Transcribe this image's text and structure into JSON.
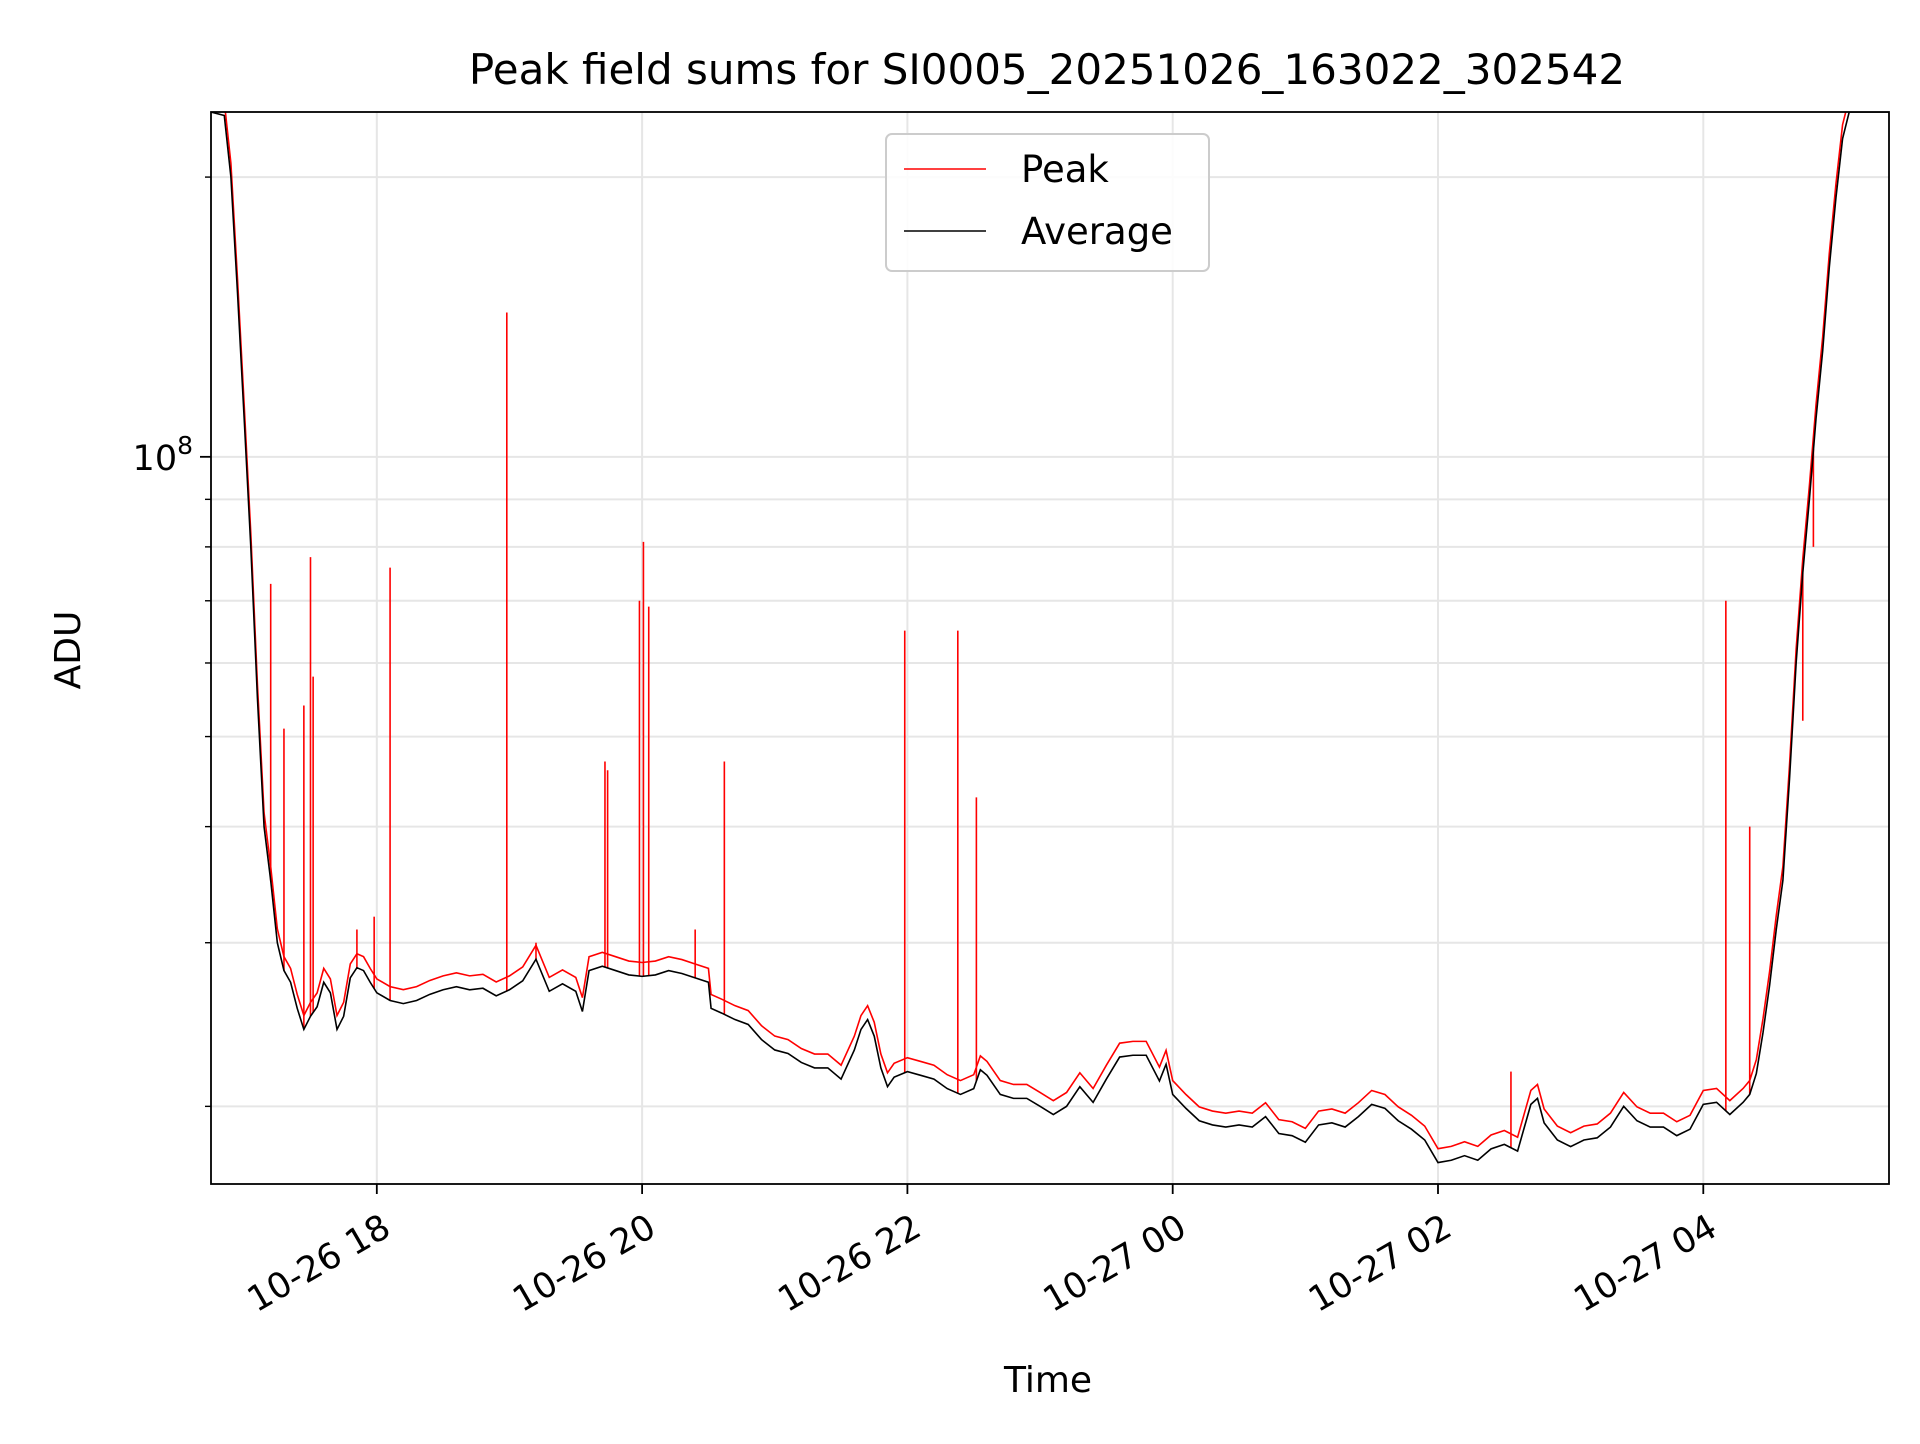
{
  "chart_data": {
    "type": "line",
    "title": "Peak field sums for SI0005_20251026_163022_302542",
    "xlabel": "Time",
    "ylabel": "ADU",
    "yscale": "log",
    "ylim": [
      16500000,
      235000000
    ],
    "xlim_hours": [
      16.75,
      29.4
    ],
    "x_ticks": [
      {
        "hour": 18,
        "label": "10-26 18"
      },
      {
        "hour": 20,
        "label": "10-26 20"
      },
      {
        "hour": 22,
        "label": "10-26 22"
      },
      {
        "hour": 24,
        "label": "10-27 00"
      },
      {
        "hour": 26,
        "label": "10-27 02"
      },
      {
        "hour": 28,
        "label": "10-27 04"
      }
    ],
    "y_major_ticks": [
      {
        "value": 100000000,
        "base": "10",
        "exp": "8"
      }
    ],
    "y_minor_ticks": [
      20000000,
      30000000,
      40000000,
      50000000,
      60000000,
      70000000,
      80000000,
      90000000,
      200000000
    ],
    "grid": true,
    "legend": {
      "position": "top-center",
      "entries": [
        {
          "name": "Peak",
          "color": "#ff0000"
        },
        {
          "name": "Average",
          "color": "#000000"
        }
      ]
    },
    "x_units": "hours since 2025-10-26 00:00",
    "series": [
      {
        "name": "Average",
        "color": "#000000",
        "points": [
          [
            16.75,
            235000000
          ],
          [
            16.85,
            233000000
          ],
          [
            16.9,
            200000000
          ],
          [
            16.95,
            150000000
          ],
          [
            17.0,
            110000000
          ],
          [
            17.05,
            80000000
          ],
          [
            17.1,
            55000000
          ],
          [
            17.15,
            40000000
          ],
          [
            17.2,
            35000000
          ],
          [
            17.25,
            30000000
          ],
          [
            17.3,
            28000000
          ],
          [
            17.35,
            27200000
          ],
          [
            17.4,
            25500000
          ],
          [
            17.45,
            24200000
          ],
          [
            17.5,
            25000000
          ],
          [
            17.55,
            25600000
          ],
          [
            17.6,
            27200000
          ],
          [
            17.65,
            26500000
          ],
          [
            17.7,
            24200000
          ],
          [
            17.75,
            25000000
          ],
          [
            17.8,
            27500000
          ],
          [
            17.85,
            28200000
          ],
          [
            17.9,
            28000000
          ],
          [
            17.95,
            27200000
          ],
          [
            18.0,
            26500000
          ],
          [
            18.1,
            26000000
          ],
          [
            18.2,
            25800000
          ],
          [
            18.3,
            26000000
          ],
          [
            18.4,
            26400000
          ],
          [
            18.5,
            26700000
          ],
          [
            18.6,
            26900000
          ],
          [
            18.7,
            26700000
          ],
          [
            18.8,
            26800000
          ],
          [
            18.9,
            26300000
          ],
          [
            19.0,
            26700000
          ],
          [
            19.1,
            27300000
          ],
          [
            19.2,
            28800000
          ],
          [
            19.3,
            26600000
          ],
          [
            19.4,
            27100000
          ],
          [
            19.5,
            26600000
          ],
          [
            19.55,
            25300000
          ],
          [
            19.6,
            28000000
          ],
          [
            19.7,
            28300000
          ],
          [
            19.8,
            28000000
          ],
          [
            19.9,
            27700000
          ],
          [
            20.0,
            27600000
          ],
          [
            20.1,
            27700000
          ],
          [
            20.2,
            28000000
          ],
          [
            20.3,
            27800000
          ],
          [
            20.4,
            27500000
          ],
          [
            20.5,
            27200000
          ],
          [
            20.52,
            25500000
          ],
          [
            20.6,
            25200000
          ],
          [
            20.7,
            24800000
          ],
          [
            20.8,
            24500000
          ],
          [
            20.9,
            23600000
          ],
          [
            21.0,
            23000000
          ],
          [
            21.1,
            22800000
          ],
          [
            21.2,
            22300000
          ],
          [
            21.3,
            22000000
          ],
          [
            21.4,
            22000000
          ],
          [
            21.5,
            21400000
          ],
          [
            21.6,
            23000000
          ],
          [
            21.65,
            24200000
          ],
          [
            21.7,
            24800000
          ],
          [
            21.75,
            23800000
          ],
          [
            21.8,
            22000000
          ],
          [
            21.85,
            21000000
          ],
          [
            21.9,
            21500000
          ],
          [
            22.0,
            21800000
          ],
          [
            22.1,
            21600000
          ],
          [
            22.2,
            21400000
          ],
          [
            22.3,
            20900000
          ],
          [
            22.4,
            20600000
          ],
          [
            22.5,
            20900000
          ],
          [
            22.55,
            21900000
          ],
          [
            22.6,
            21600000
          ],
          [
            22.7,
            20600000
          ],
          [
            22.8,
            20400000
          ],
          [
            22.9,
            20400000
          ],
          [
            23.0,
            20000000
          ],
          [
            23.1,
            19600000
          ],
          [
            23.2,
            20000000
          ],
          [
            23.3,
            21000000
          ],
          [
            23.4,
            20200000
          ],
          [
            23.5,
            21400000
          ],
          [
            23.6,
            22600000
          ],
          [
            23.7,
            22700000
          ],
          [
            23.8,
            22700000
          ],
          [
            23.9,
            21300000
          ],
          [
            23.95,
            22200000
          ],
          [
            24.0,
            20600000
          ],
          [
            24.1,
            19900000
          ],
          [
            24.2,
            19300000
          ],
          [
            24.3,
            19100000
          ],
          [
            24.4,
            19000000
          ],
          [
            24.5,
            19100000
          ],
          [
            24.6,
            19000000
          ],
          [
            24.7,
            19500000
          ],
          [
            24.8,
            18700000
          ],
          [
            24.9,
            18600000
          ],
          [
            25.0,
            18300000
          ],
          [
            25.1,
            19100000
          ],
          [
            25.2,
            19200000
          ],
          [
            25.3,
            19000000
          ],
          [
            25.4,
            19500000
          ],
          [
            25.5,
            20100000
          ],
          [
            25.6,
            19900000
          ],
          [
            25.7,
            19300000
          ],
          [
            25.8,
            18900000
          ],
          [
            25.9,
            18400000
          ],
          [
            26.0,
            17400000
          ],
          [
            26.1,
            17500000
          ],
          [
            26.2,
            17700000
          ],
          [
            26.3,
            17500000
          ],
          [
            26.4,
            18000000
          ],
          [
            26.5,
            18200000
          ],
          [
            26.6,
            17900000
          ],
          [
            26.7,
            20100000
          ],
          [
            26.75,
            20400000
          ],
          [
            26.8,
            19200000
          ],
          [
            26.9,
            18400000
          ],
          [
            27.0,
            18100000
          ],
          [
            27.1,
            18400000
          ],
          [
            27.2,
            18500000
          ],
          [
            27.3,
            19000000
          ],
          [
            27.4,
            20000000
          ],
          [
            27.5,
            19300000
          ],
          [
            27.6,
            19000000
          ],
          [
            27.7,
            19000000
          ],
          [
            27.8,
            18600000
          ],
          [
            27.9,
            18900000
          ],
          [
            28.0,
            20100000
          ],
          [
            28.1,
            20200000
          ],
          [
            28.2,
            19600000
          ],
          [
            28.3,
            20200000
          ],
          [
            28.35,
            20600000
          ],
          [
            28.4,
            21700000
          ],
          [
            28.45,
            24000000
          ],
          [
            28.5,
            27000000
          ],
          [
            28.55,
            31000000
          ],
          [
            28.6,
            35000000
          ],
          [
            28.65,
            45000000
          ],
          [
            28.7,
            60000000
          ],
          [
            28.75,
            75000000
          ],
          [
            28.8,
            90000000
          ],
          [
            28.85,
            110000000
          ],
          [
            28.9,
            130000000
          ],
          [
            28.95,
            160000000
          ],
          [
            29.0,
            190000000
          ],
          [
            29.05,
            220000000
          ],
          [
            29.1,
            235000000
          ],
          [
            29.4,
            235000000
          ]
        ]
      },
      {
        "name": "Peak",
        "color": "#ff0000",
        "spikes": [
          [
            17.2,
            73000000
          ],
          [
            17.3,
            51000000
          ],
          [
            17.45,
            54000000
          ],
          [
            17.5,
            78000000
          ],
          [
            17.52,
            58000000
          ],
          [
            17.85,
            31000000
          ],
          [
            17.98,
            32000000
          ],
          [
            18.1,
            76000000
          ],
          [
            18.98,
            143000000
          ],
          [
            19.2,
            30000000
          ],
          [
            19.72,
            47000000
          ],
          [
            19.74,
            46000000
          ],
          [
            19.98,
            70000000
          ],
          [
            20.01,
            81000000
          ],
          [
            20.05,
            69000000
          ],
          [
            20.4,
            31000000
          ],
          [
            20.62,
            47000000
          ],
          [
            21.98,
            65000000
          ],
          [
            22.38,
            65000000
          ],
          [
            22.52,
            43000000
          ],
          [
            26.55,
            21800000
          ],
          [
            28.17,
            70000000
          ],
          [
            28.35,
            40000000
          ],
          [
            28.75,
            52000000
          ],
          [
            28.83,
            80000000
          ]
        ]
      }
    ]
  }
}
